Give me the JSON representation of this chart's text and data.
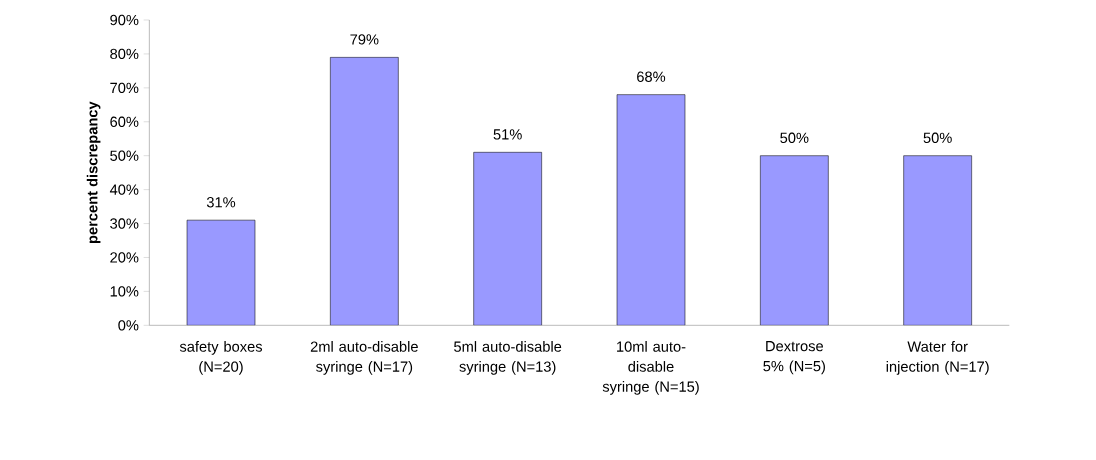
{
  "chart_data": {
    "type": "bar",
    "ylabel": "percent discrepancy",
    "categories": [
      "safety boxes (N=20)",
      "2ml auto-disable syringe (N=17)",
      "5ml auto-disable syringe (N=13)",
      "10ml auto-disable syringe (N=15)",
      "Dextrose 5% (N=5)",
      "Water for injection (N=17)"
    ],
    "values": [
      31,
      79,
      51,
      68,
      50,
      50
    ],
    "value_labels": [
      "31%",
      "79%",
      "51%",
      "68%",
      "50%",
      "50%"
    ],
    "color": "#9999ff",
    "ylim": [
      0,
      90
    ],
    "yticks": [
      {
        "value": 0,
        "label": "0%"
      },
      {
        "value": 10,
        "label": "10%"
      },
      {
        "value": 20,
        "label": "20%"
      },
      {
        "value": 30,
        "label": "30%"
      },
      {
        "value": 40,
        "label": "40%"
      },
      {
        "value": 50,
        "label": "50%"
      },
      {
        "value": 60,
        "label": "60%"
      },
      {
        "value": 70,
        "label": "70%"
      },
      {
        "value": 80,
        "label": "80%"
      },
      {
        "value": 90,
        "label": "90%"
      }
    ],
    "grid": false
  }
}
